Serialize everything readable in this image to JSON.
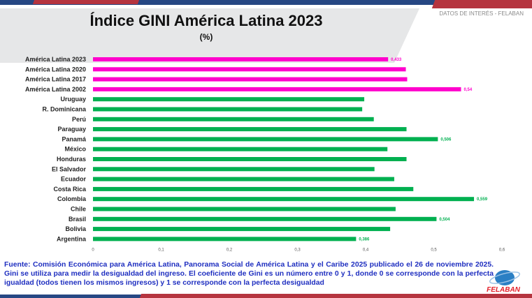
{
  "header": {
    "title": "Índice GINI América Latina 2023",
    "subtitle": "(%)",
    "brand": "DATOS DE INTERÉS - FELABAN"
  },
  "chart_data": {
    "type": "bar",
    "orientation": "horizontal",
    "title": "Índice GINI América Latina 2023",
    "subtitle": "(%)",
    "categories": [
      "América Latina 2023",
      "América Latina 2020",
      "América Latina 2017",
      "América Latina 2002",
      "Uruguay",
      "R. Dominicana",
      "Perú",
      "Paraguay",
      "Panamá",
      "México",
      "Honduras",
      "El Salvador",
      "Ecuador",
      "Costa Rica",
      "Colombia",
      "Chile",
      "Brasil",
      "Bolivia",
      "Argentina"
    ],
    "values": [
      0.433,
      0.459,
      0.461,
      0.54,
      0.398,
      0.395,
      0.412,
      0.46,
      0.506,
      0.432,
      0.46,
      0.413,
      0.442,
      0.47,
      0.559,
      0.444,
      0.504,
      0.436,
      0.386
    ],
    "data_labels": {
      "0": "0,433",
      "3": "0,54",
      "8": "0,506",
      "14": "0,559",
      "16": "0,504",
      "18": "0,386"
    },
    "colors": [
      "#ff00cc",
      "#ff00cc",
      "#ff00cc",
      "#ff00cc",
      "#00b050",
      "#00b050",
      "#00b050",
      "#00b050",
      "#00b050",
      "#00b050",
      "#00b050",
      "#00b050",
      "#00b050",
      "#00b050",
      "#00b050",
      "#00b050",
      "#00b050",
      "#00b050",
      "#00b050"
    ],
    "xlim": [
      0,
      0.6
    ],
    "xticks": [
      "0",
      "0,1",
      "0,2",
      "0,3",
      "0,4",
      "0,5",
      "0,6"
    ],
    "grid": false
  },
  "source": "Fuente: Comisión Económica para América Latina, Panorama Social de América Latina y el Caribe 2025 publicado el 26 de noviembre 2025. Gini se utiliza para medir la desigualdad del ingreso.  El coeficiente de Gini es un número entre 0 y 1, donde 0 se corresponde con la perfecta igualdad (todos tienen los mismos ingresos) y 1 se corresponde con la perfecta desigualdad",
  "logo": {
    "text": "FELABAN"
  }
}
